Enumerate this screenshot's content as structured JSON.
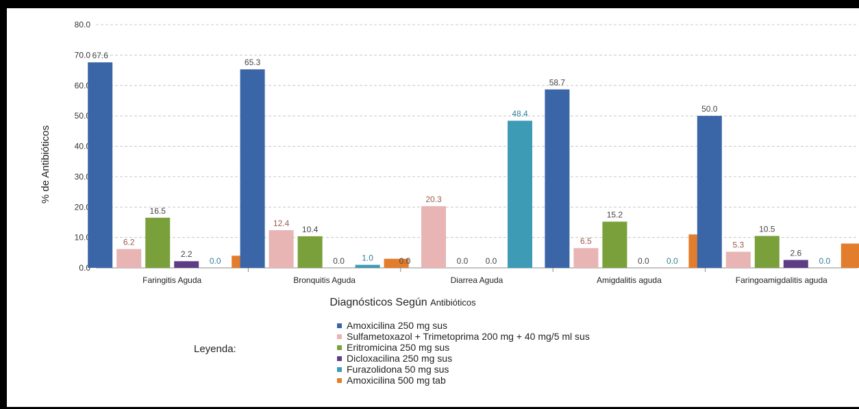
{
  "chart_data": {
    "type": "bar",
    "title": "",
    "xlabel": "Diagnósticos Según Antibióticos",
    "ylabel": "% de Antibióticos",
    "ylim": [
      0,
      80
    ],
    "yticks": [
      "0.0",
      "10.0",
      "20.0",
      "30.0",
      "40.0",
      "50.0",
      "60.0",
      "70.0",
      "80.0"
    ],
    "grid": true,
    "legend_title": "Leyenda:",
    "legend_position": "bottom",
    "categories": [
      "Faringitis Aguda",
      "Bronquitis Aguda",
      "Diarrea Aguda",
      "Amigdalitis aguda",
      "Faringoamigdalitis aguda"
    ],
    "series": [
      {
        "name": "Amoxicilina 250 mg sus",
        "color": "#3a66a8",
        "values": [
          67.6,
          65.3,
          0.0,
          58.7,
          50.0
        ],
        "labels": [
          "67.6",
          "65.3",
          "0.0",
          "58.7",
          "50.0"
        ]
      },
      {
        "name": "Sulfametoxazol + Trimetoprima 200 mg + 40 mg/5 ml  sus",
        "color": "#e8b4b4",
        "values": [
          6.2,
          12.4,
          20.3,
          6.5,
          5.3
        ],
        "labels": [
          "6.2",
          "12.4",
          "20.3",
          "6.5",
          "5.3"
        ]
      },
      {
        "name": "Eritromicina 250 mg sus",
        "color": "#7aa03c",
        "values": [
          16.5,
          10.4,
          0.0,
          15.2,
          10.5
        ],
        "labels": [
          "16.5",
          "10.4",
          "0.0",
          "15.2",
          "10.5"
        ]
      },
      {
        "name": "Dicloxacilina  250 mg sus",
        "color": "#5d3e86",
        "values": [
          2.2,
          0.0,
          0.0,
          0.0,
          2.6
        ],
        "labels": [
          "2.2",
          "0.0",
          "0.0",
          "0.0",
          "2.6"
        ]
      },
      {
        "name": "Furazolidona  50 mg sus",
        "color": "#3d9bb5",
        "values": [
          0.0,
          1.0,
          48.4,
          0.0,
          0.0
        ],
        "labels": [
          "0.0",
          "1.0",
          "48.4",
          "0.0",
          "0.0"
        ]
      },
      {
        "name": "Amoxicilina 500 mg tab",
        "color": "#e37d2e",
        "values": [
          4.0,
          3.0,
          null,
          11.0,
          8.0
        ],
        "labels": [
          null,
          null,
          null,
          null,
          null
        ]
      }
    ]
  }
}
